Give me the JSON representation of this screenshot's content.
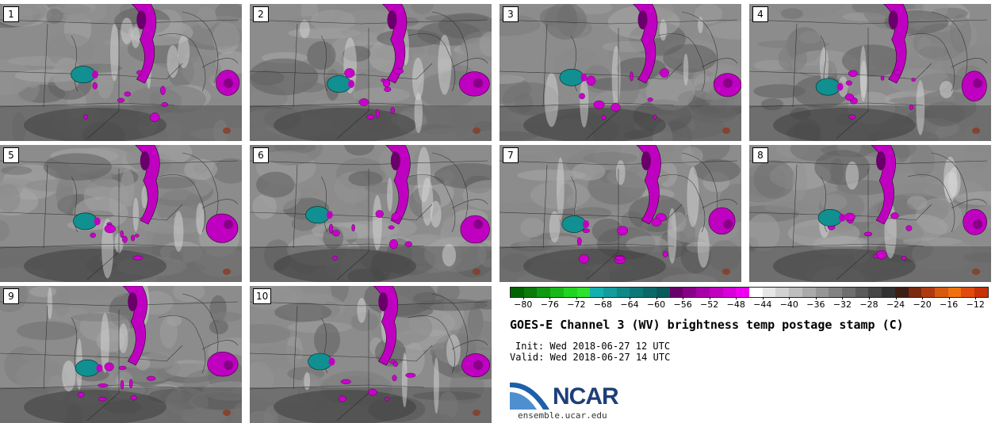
{
  "panels": [
    {
      "label": "1"
    },
    {
      "label": "2"
    },
    {
      "label": "3"
    },
    {
      "label": "4"
    },
    {
      "label": "5"
    },
    {
      "label": "6"
    },
    {
      "label": "7"
    },
    {
      "label": "8"
    },
    {
      "label": "9"
    },
    {
      "label": "10"
    }
  ],
  "colorbar": {
    "ticks": [
      "−80",
      "−76",
      "−72",
      "−68",
      "−64",
      "−60",
      "−56",
      "−52",
      "−48",
      "−44",
      "−40",
      "−36",
      "−32",
      "−28",
      "−24",
      "−20",
      "−16",
      "−12"
    ],
    "min": -82,
    "max": -10,
    "colors": [
      "#006400",
      "#0a7a0a",
      "#119911",
      "#18b818",
      "#22d422",
      "#2fe02f",
      "#14b0b0",
      "#129c9c",
      "#108888",
      "#0e7878",
      "#0c6868",
      "#0a5a5a",
      "#6a006a",
      "#880088",
      "#a600a6",
      "#c000c0",
      "#d800d8",
      "#ee00ee",
      "#ffffff",
      "#e6e6e6",
      "#d2d2d2",
      "#bebebe",
      "#aaaaaa",
      "#969696",
      "#828282",
      "#6e6e6e",
      "#5a5a5a",
      "#464646",
      "#323232",
      "#3c1e14",
      "#7a2a10",
      "#b03a10",
      "#d85a10",
      "#f07010",
      "#e04a10",
      "#c83008"
    ]
  },
  "title": "GOES-E Channel 3 (WV) brightness temp postage stamp (C)",
  "init": "Init: Wed 2018-06-27 12 UTC",
  "valid": "Valid: Wed 2018-06-27 14 UTC",
  "logo": {
    "text": "NCAR",
    "color": "#1d3f78"
  },
  "site": "ensemble.ucar.edu"
}
